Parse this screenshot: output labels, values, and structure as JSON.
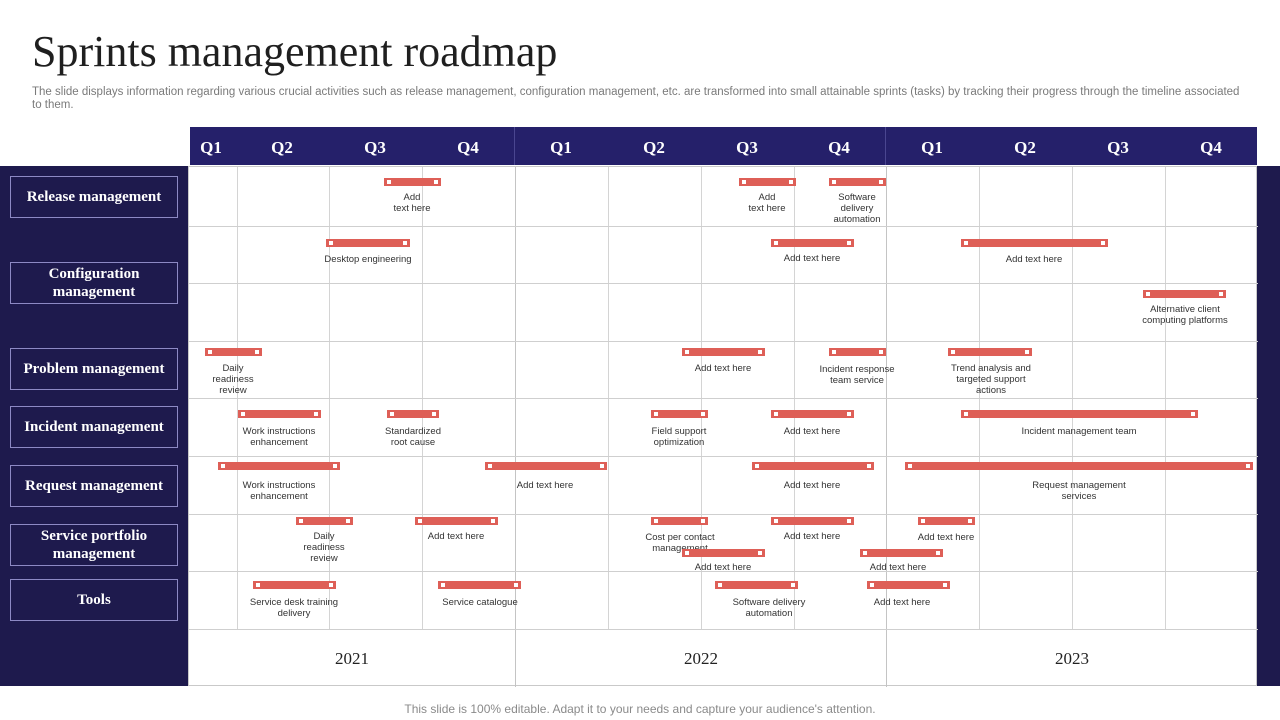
{
  "title": "Sprints management roadmap",
  "subtitle": "The slide displays information regarding various crucial activities such as release management, configuration management, etc. are transformed into small attainable sprints (tasks) by tracking their progress through the timeline associated to them.",
  "quarters": [
    "Q1",
    "Q2",
    "Q3",
    "Q4",
    "Q1",
    "Q2",
    "Q3",
    "Q4",
    "Q1",
    "Q2",
    "Q3",
    "Q4"
  ],
  "years": [
    "2021",
    "2022",
    "2023"
  ],
  "categories": [
    "Release management",
    "Configuration management",
    "Problem management",
    "Incident management",
    "Request management",
    "Service portfolio management",
    "Tools"
  ],
  "tasks": [
    {
      "label": "Add\ntext here"
    },
    {
      "label": "Add\ntext here"
    },
    {
      "label": "Software\ndelivery\nautomation"
    },
    {
      "label": "Desktop engineering"
    },
    {
      "label": "Add text here"
    },
    {
      "label": "Add text here"
    },
    {
      "label": "Alternative client\ncomputing platforms"
    },
    {
      "label": "Daily\nreadiness\nreview"
    },
    {
      "label": "Add text here"
    },
    {
      "label": "Incident response\nteam service"
    },
    {
      "label": "Trend analysis and\ntargeted support\nactions"
    },
    {
      "label": "Work instructions\nenhancement"
    },
    {
      "label": "Standardized\nroot cause"
    },
    {
      "label": "Field support\noptimization"
    },
    {
      "label": "Add text here"
    },
    {
      "label": "Incident management team"
    },
    {
      "label": "Work instructions\nenhancement"
    },
    {
      "label": "Add text here"
    },
    {
      "label": "Add text here"
    },
    {
      "label": "Request management services"
    },
    {
      "label": "Daily\nreadiness\nreview"
    },
    {
      "label": "Add text here"
    },
    {
      "label": "Cost per contact management"
    },
    {
      "label": "Add text here"
    },
    {
      "label": "Add text here"
    },
    {
      "label": "Add text here"
    },
    {
      "label": "Add text here"
    },
    {
      "label": "Service desk training\ndelivery"
    },
    {
      "label": "Service catalogue"
    },
    {
      "label": "Software delivery\nautomation"
    },
    {
      "label": "Add text here"
    }
  ],
  "footer": "This slide is 100% editable. Adapt it to your needs and capture your audience's attention."
}
